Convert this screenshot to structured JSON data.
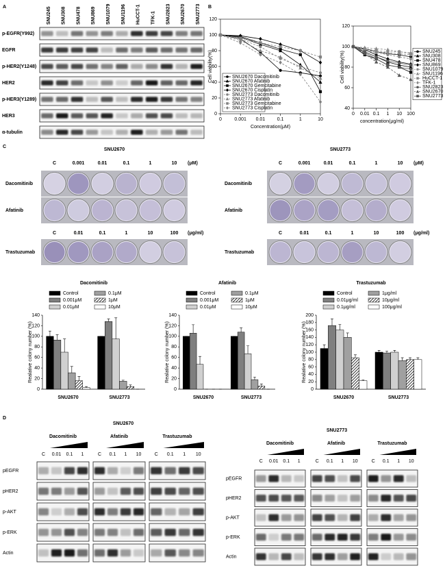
{
  "panel_labels": [
    "A",
    "B",
    "C",
    "D"
  ],
  "western_a": {
    "cell_lines": [
      "SNU245",
      "SNU308",
      "SNU478",
      "SNU869",
      "SNU1079",
      "SNU1196",
      "HuCCT-1",
      "TFK-1",
      "SNU2823",
      "SNU2670",
      "SNU2773"
    ],
    "proteins": [
      "p-EGFR(Y992)",
      "EGFR",
      "p-HER2(Y1248)",
      "HER2",
      "p-HER3(Y1289)",
      "HER3",
      "α-tubulin"
    ]
  },
  "colony": {
    "cell_lines": [
      "SNU2670",
      "SNU2773"
    ],
    "um_doses": [
      "C",
      "0.001",
      "0.01",
      "0.1",
      "1",
      "10"
    ],
    "um_unit": "(μM)",
    "ugml_doses": [
      "C",
      "0.01",
      "0.1",
      "1",
      "10",
      "100"
    ],
    "ugml_unit": "(μg/ml)",
    "drugs": [
      "Dacomitinib",
      "Afatinib",
      "Trastuzumab"
    ]
  },
  "western_d": {
    "cell_lines": [
      "SNU2670",
      "SNU2773"
    ],
    "drugs": [
      {
        "name": "Dacomitinib",
        "doses": [
          "C",
          "0.01",
          "0.1",
          "1"
        ]
      },
      {
        "name": "Afatinib",
        "doses": [
          "C",
          "0.1",
          "1",
          "10"
        ]
      },
      {
        "name": "Trastuzumab",
        "doses": [
          "C",
          "0.1",
          "1",
          "10"
        ]
      }
    ],
    "proteins": [
      "pEGFR",
      "pHER2",
      "p-AKT",
      "p-ERK",
      "Actin"
    ]
  },
  "chart_data": [
    {
      "type": "line",
      "x_label": "Concentration(μM)",
      "y_label": "Cell viability(%)",
      "categories": [
        "0",
        "0.001",
        "0.01",
        "0.1",
        "1",
        "10"
      ],
      "ylim": [
        0,
        120
      ],
      "yticks": [
        0,
        20,
        40,
        60,
        80,
        100,
        120
      ],
      "legend": "lower left",
      "series": [
        {
          "name": "SNU2670 Dacomitinib",
          "color": "#000000",
          "dashed": false,
          "marker": "circle",
          "values": [
            100,
            95,
            78,
            55,
            52,
            48
          ]
        },
        {
          "name": "SNU2670 Afatinib",
          "color": "#000000",
          "dashed": false,
          "marker": "triangle",
          "values": [
            100,
            97,
            88,
            80,
            62,
            40
          ]
        },
        {
          "name": "SNU2670 Gemcitabine",
          "color": "#000000",
          "dashed": false,
          "marker": "square",
          "values": [
            100,
            98,
            90,
            82,
            75,
            28
          ]
        },
        {
          "name": "SNU2670 Cisplatin",
          "color": "#000000",
          "dashed": false,
          "marker": "diamond",
          "values": [
            100,
            99,
            95,
            88,
            80,
            65
          ]
        },
        {
          "name": "SNU2773 Dacomitinib",
          "color": "#808080",
          "dashed": true,
          "marker": "circle",
          "values": [
            100,
            95,
            85,
            70,
            60,
            52
          ]
        },
        {
          "name": "SNU2773 Afatinib",
          "color": "#808080",
          "dashed": true,
          "marker": "triangle",
          "values": [
            100,
            93,
            80,
            72,
            58,
            45
          ]
        },
        {
          "name": "SNU2773 Gemcitabine",
          "color": "#808080",
          "dashed": true,
          "marker": "square",
          "values": [
            100,
            96,
            90,
            85,
            80,
            72
          ]
        },
        {
          "name": "SNU2773 Cisplatin",
          "color": "#808080",
          "dashed": true,
          "marker": "diamond",
          "values": [
            100,
            90,
            75,
            65,
            50,
            15
          ]
        }
      ]
    },
    {
      "type": "line",
      "x_label": "concentration(μg/ml)",
      "y_label": "Cell viability(%)",
      "categories": [
        "0",
        "0.01",
        "0.1",
        "1",
        "10",
        "100"
      ],
      "ylim": [
        40,
        120
      ],
      "yticks": [
        40,
        60,
        80,
        100,
        120
      ],
      "legend": "right",
      "series": [
        {
          "name": "SNU245",
          "color": "#000000",
          "dashed": false,
          "marker": "circle",
          "values": [
            100,
            98,
            95,
            93,
            92,
            90
          ]
        },
        {
          "name": "SNU308",
          "color": "#000000",
          "dashed": false,
          "marker": "triangle",
          "values": [
            100,
            95,
            90,
            85,
            82,
            80
          ]
        },
        {
          "name": "SNU478",
          "color": "#000000",
          "dashed": false,
          "marker": "square",
          "values": [
            100,
            92,
            88,
            82,
            80,
            75
          ]
        },
        {
          "name": "SNU869",
          "color": "#000000",
          "dashed": false,
          "marker": "diamond",
          "values": [
            100,
            97,
            92,
            88,
            85,
            83
          ]
        },
        {
          "name": "SNU1079",
          "color": "#888888",
          "dashed": true,
          "marker": "circle",
          "values": [
            100,
            96,
            94,
            92,
            90,
            88
          ]
        },
        {
          "name": "SNU1196",
          "color": "#888888",
          "dashed": true,
          "marker": "triangle",
          "values": [
            100,
            99,
            98,
            97,
            95,
            94
          ]
        },
        {
          "name": "HuCCT-1",
          "color": "#888888",
          "dashed": true,
          "marker": "square",
          "values": [
            100,
            98,
            96,
            95,
            95,
            93
          ]
        },
        {
          "name": "TFK-1",
          "color": "#888888",
          "dashed": true,
          "marker": "diamond",
          "values": [
            100,
            97,
            95,
            94,
            93,
            92
          ]
        },
        {
          "name": "SNU2823",
          "color": "#555555",
          "dashed": false,
          "marker": "circle",
          "values": [
            100,
            94,
            88,
            82,
            80,
            78
          ]
        },
        {
          "name": "SNU2670",
          "color": "#555555",
          "dashed": true,
          "marker": "triangle",
          "values": [
            100,
            93,
            85,
            80,
            72,
            68
          ]
        },
        {
          "name": "SNU2773",
          "color": "#555555",
          "dashed": false,
          "marker": "square",
          "values": [
            100,
            95,
            90,
            86,
            84,
            82
          ]
        }
      ]
    },
    {
      "type": "bar",
      "title": "Dacomitinib",
      "y_label": "Realative colony number (%)",
      "categories": [
        "SNU2670",
        "SNU2773"
      ],
      "ylim": [
        0,
        140
      ],
      "yticks": [
        0,
        20,
        40,
        60,
        80,
        100,
        120,
        140
      ],
      "series": [
        {
          "name": "Control",
          "color": "#000000",
          "values": [
            100,
            100
          ],
          "errors": [
            10,
            0
          ]
        },
        {
          "name": "0.001μM",
          "color": "#7f7f7f",
          "values": [
            93,
            128
          ],
          "errors": [
            10,
            5
          ]
        },
        {
          "name": "0.01μM",
          "color": "#d0d0d0",
          "values": [
            70,
            95
          ],
          "errors": [
            25,
            40
          ]
        },
        {
          "name": "0.1μM",
          "color": "#a0a0a0",
          "values": [
            31,
            15
          ],
          "errors": [
            12,
            2
          ]
        },
        {
          "name": "1μM",
          "color": "#555555",
          "hatched": true,
          "values": [
            16,
            5
          ],
          "errors": [
            8,
            3
          ]
        },
        {
          "name": "10μM",
          "color": "#ffffff",
          "values": [
            3,
            0
          ],
          "errors": [
            2,
            0
          ]
        }
      ]
    },
    {
      "type": "bar",
      "title": "Afatinib",
      "y_label": "Realative colony number (%)",
      "categories": [
        "SNU2670",
        "SNU2773"
      ],
      "ylim": [
        0,
        140
      ],
      "yticks": [
        0,
        20,
        40,
        60,
        80,
        100,
        120,
        140
      ],
      "series": [
        {
          "name": "Control",
          "color": "#000000",
          "values": [
            100,
            100
          ],
          "errors": [
            0,
            0
          ]
        },
        {
          "name": "0.001μM",
          "color": "#7f7f7f",
          "values": [
            106,
            108
          ],
          "errors": [
            16,
            8
          ]
        },
        {
          "name": "0.01μM",
          "color": "#d0d0d0",
          "values": [
            47,
            67
          ],
          "errors": [
            15,
            15
          ]
        },
        {
          "name": "0.1μM",
          "color": "#a0a0a0",
          "values": [
            0,
            18
          ],
          "errors": [
            0,
            5
          ]
        },
        {
          "name": "1μM",
          "color": "#555555",
          "hatched": true,
          "values": [
            0,
            6
          ],
          "errors": [
            0,
            4
          ]
        },
        {
          "name": "10μM",
          "color": "#ffffff",
          "values": [
            0,
            0
          ],
          "errors": [
            0,
            0
          ]
        }
      ]
    },
    {
      "type": "bar",
      "title": "Trastuzumab",
      "y_label": "Realative colony number (%)",
      "categories": [
        "SNU2670",
        "SNU2773"
      ],
      "ylim": [
        0,
        200
      ],
      "yticks": [
        0,
        20,
        40,
        60,
        80,
        100,
        120,
        140,
        160,
        180,
        200
      ],
      "series": [
        {
          "name": "Control",
          "color": "#000000",
          "values": [
            110,
            100
          ],
          "errors": [
            10,
            5
          ]
        },
        {
          "name": "0.01μg/ml",
          "color": "#7f7f7f",
          "values": [
            172,
            98
          ],
          "errors": [
            18,
            5
          ]
        },
        {
          "name": "0.1μg/ml",
          "color": "#d0d0d0",
          "values": [
            160,
            100
          ],
          "errors": [
            15,
            5
          ]
        },
        {
          "name": "1μg/ml",
          "color": "#a0a0a0",
          "values": [
            140,
            77
          ],
          "errors": [
            12,
            8
          ]
        },
        {
          "name": "10μg/ml",
          "color": "#555555",
          "hatched": true,
          "values": [
            85,
            80
          ],
          "errors": [
            8,
            5
          ]
        },
        {
          "name": "100μg/ml",
          "color": "#ffffff",
          "values": [
            23,
            80
          ],
          "errors": [
            2,
            5
          ]
        }
      ]
    }
  ]
}
